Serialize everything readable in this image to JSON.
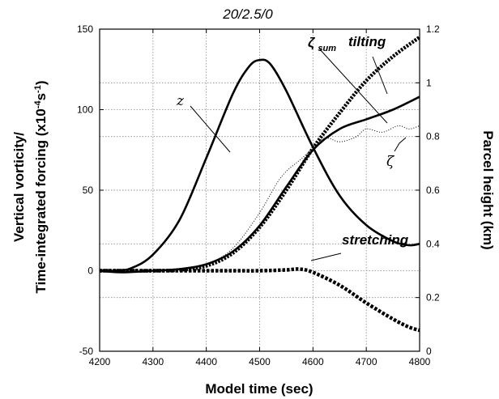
{
  "chart_data": {
    "type": "line",
    "title": "20/2.5/0",
    "xlabel": "Model time (sec)",
    "ylabel_line1": "Vertical vorticity/",
    "ylabel_line2_prefix": "Time-integrated forcing (x10",
    "ylabel_exp1": "-4",
    "ylabel_mid": "s",
    "ylabel_exp2": "-1",
    "ylabel_suffix": ")",
    "y2label": "Parcel height (km)",
    "xlim": [
      4200,
      4800
    ],
    "ylim": [
      -50,
      150
    ],
    "y2lim": [
      0,
      1.2
    ],
    "xticks": [
      "4200",
      "4300",
      "4400",
      "4500",
      "4600",
      "4700",
      "4800"
    ],
    "yticks": [
      "-50",
      "0",
      "50",
      "100",
      "150"
    ],
    "y2ticks": [
      "0",
      "0.2",
      "0.4",
      "0.6",
      "0.8",
      "1",
      "1.2"
    ],
    "grid": true,
    "annotations": {
      "z": "z",
      "zeta_sum": "ζ",
      "zeta_sum_sub": "sum",
      "tilting": "tilting",
      "zeta": "ζ",
      "stretching": "stretching"
    },
    "series": [
      {
        "name": "z",
        "axis": "right",
        "style": "solid-thick",
        "x": [
          4200,
          4230,
          4260,
          4300,
          4350,
          4400,
          4450,
          4480,
          4500,
          4520,
          4550,
          4600,
          4650,
          4700,
          4750,
          4780,
          4800
        ],
        "y": [
          0.3,
          0.3,
          0.31,
          0.36,
          0.49,
          0.72,
          0.96,
          1.06,
          1.085,
          1.07,
          0.97,
          0.76,
          0.58,
          0.47,
          0.41,
          0.395,
          0.4
        ]
      },
      {
        "name": "ζsum",
        "axis": "left",
        "style": "solid-thick",
        "x": [
          4200,
          4240,
          4300,
          4350,
          4400,
          4450,
          4500,
          4550,
          4600,
          4650,
          4700,
          4750,
          4800
        ],
        "y": [
          0,
          -1,
          0,
          1,
          4,
          12,
          28,
          52,
          75,
          88,
          94,
          100,
          108
        ]
      },
      {
        "name": "tilting",
        "axis": "left",
        "style": "dotted-heavy",
        "x": [
          4200,
          4250,
          4300,
          4350,
          4400,
          4450,
          4500,
          4550,
          4600,
          4650,
          4700,
          4750,
          4800
        ],
        "y": [
          0,
          0,
          0,
          0.5,
          3,
          11,
          27,
          50,
          76,
          98,
          118,
          133,
          145
        ]
      },
      {
        "name": "ζ",
        "axis": "left",
        "style": "dotted-thin",
        "x": [
          4200,
          4240,
          4300,
          4350,
          4400,
          4450,
          4500,
          4540,
          4580,
          4620,
          4650,
          4680,
          4700,
          4730,
          4760,
          4780,
          4800
        ],
        "y": [
          0,
          -1,
          0,
          1,
          4,
          14,
          36,
          58,
          70,
          82,
          80,
          83,
          88,
          86,
          90,
          88,
          90
        ]
      },
      {
        "name": "stretching",
        "axis": "left",
        "style": "dashed-heavy",
        "x": [
          4200,
          4250,
          4300,
          4350,
          4400,
          4450,
          4500,
          4550,
          4575,
          4600,
          4650,
          4700,
          4750,
          4780,
          4800
        ],
        "y": [
          0,
          0,
          0,
          0,
          0,
          0,
          0,
          0.5,
          1,
          -1,
          -9,
          -20,
          -30,
          -35,
          -37
        ]
      }
    ]
  }
}
